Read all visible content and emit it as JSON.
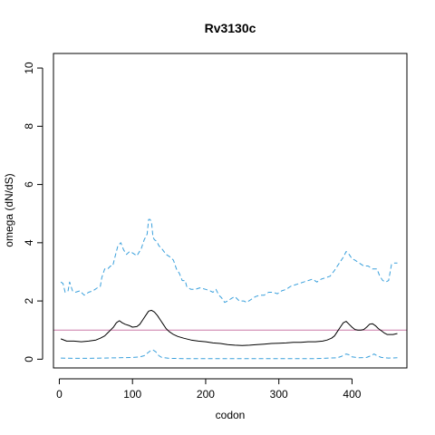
{
  "chart_data": {
    "type": "line",
    "title": "Rv3130c",
    "xlabel": "codon",
    "ylabel": "omega (dN/dS)",
    "xlim": [
      -8,
      475
    ],
    "ylim": [
      -0.3,
      10.5
    ],
    "xticks": [
      0,
      100,
      200,
      300,
      400
    ],
    "yticks": [
      0,
      2,
      4,
      6,
      8,
      10
    ],
    "grid": false,
    "reference_line": {
      "y": 1,
      "color": "#cc79a7"
    },
    "series": [
      {
        "style": "dashed",
        "color": "#3aa0dc",
        "x": [
          2,
          5,
          8,
          12,
          14,
          18,
          22,
          28,
          34,
          40,
          46,
          52,
          56,
          58,
          62,
          66,
          70,
          73,
          76,
          80,
          84,
          88,
          92,
          96,
          100,
          106,
          112,
          116,
          120,
          122,
          124,
          126,
          128,
          130,
          133,
          136,
          140,
          146,
          152,
          156,
          160,
          164,
          168,
          172,
          174,
          176,
          180,
          186,
          192,
          200,
          206,
          210,
          214,
          218,
          222,
          226,
          230,
          236,
          240,
          246,
          252,
          256,
          262,
          268,
          274,
          280,
          286,
          292,
          298,
          304,
          310,
          316,
          322,
          328,
          334,
          340,
          346,
          352,
          358,
          364,
          370,
          376,
          380,
          384,
          388,
          392,
          396,
          400,
          404,
          410,
          416,
          422,
          428,
          434,
          438,
          442,
          446,
          450,
          454,
          458,
          462
        ],
        "y": [
          2.65,
          2.6,
          2.3,
          2.35,
          2.65,
          2.35,
          2.3,
          2.35,
          2.2,
          2.3,
          2.35,
          2.45,
          2.5,
          2.8,
          3.1,
          3.1,
          3.2,
          3.2,
          3.5,
          3.9,
          4.0,
          3.75,
          3.6,
          3.7,
          3.65,
          3.55,
          3.8,
          4.1,
          4.3,
          4.8,
          4.8,
          4.7,
          4.2,
          4.1,
          4.05,
          3.9,
          3.8,
          3.6,
          3.5,
          3.4,
          3.1,
          2.95,
          2.7,
          2.7,
          2.5,
          2.45,
          2.4,
          2.4,
          2.45,
          2.4,
          2.35,
          2.3,
          2.4,
          2.2,
          2.1,
          1.95,
          2.0,
          2.1,
          2.15,
          2.0,
          2.0,
          1.95,
          2.05,
          2.15,
          2.2,
          2.2,
          2.3,
          2.3,
          2.25,
          2.35,
          2.4,
          2.5,
          2.55,
          2.6,
          2.65,
          2.7,
          2.75,
          2.65,
          2.75,
          2.8,
          2.85,
          3.05,
          3.2,
          3.35,
          3.5,
          3.7,
          3.6,
          3.45,
          3.4,
          3.3,
          3.2,
          3.2,
          3.1,
          3.1,
          2.85,
          2.7,
          2.65,
          2.7,
          3.25,
          3.3,
          3.3
        ]
      },
      {
        "style": "solid",
        "color": "#000000",
        "x": [
          2,
          10,
          20,
          30,
          40,
          50,
          56,
          62,
          66,
          70,
          74,
          78,
          82,
          86,
          90,
          96,
          100,
          106,
          110,
          114,
          118,
          122,
          126,
          130,
          134,
          138,
          142,
          146,
          150,
          156,
          162,
          170,
          180,
          190,
          200,
          210,
          220,
          230,
          240,
          250,
          260,
          270,
          280,
          290,
          300,
          310,
          320,
          330,
          340,
          350,
          360,
          366,
          372,
          376,
          380,
          384,
          388,
          392,
          396,
          400,
          404,
          408,
          412,
          416,
          420,
          424,
          428,
          432,
          436,
          440,
          444,
          448,
          452,
          456,
          460,
          462
        ],
        "y": [
          0.7,
          0.62,
          0.62,
          0.6,
          0.62,
          0.66,
          0.72,
          0.8,
          0.9,
          1.0,
          1.1,
          1.25,
          1.32,
          1.25,
          1.2,
          1.15,
          1.1,
          1.12,
          1.2,
          1.35,
          1.5,
          1.65,
          1.68,
          1.62,
          1.5,
          1.35,
          1.2,
          1.05,
          0.95,
          0.85,
          0.78,
          0.72,
          0.66,
          0.62,
          0.6,
          0.56,
          0.54,
          0.5,
          0.48,
          0.47,
          0.48,
          0.5,
          0.52,
          0.54,
          0.55,
          0.56,
          0.58,
          0.58,
          0.6,
          0.6,
          0.62,
          0.66,
          0.72,
          0.8,
          0.95,
          1.1,
          1.25,
          1.3,
          1.2,
          1.1,
          1.02,
          1.0,
          1.0,
          1.02,
          1.1,
          1.2,
          1.22,
          1.15,
          1.05,
          0.98,
          0.9,
          0.85,
          0.85,
          0.85,
          0.87,
          0.88
        ]
      },
      {
        "style": "dashed",
        "color": "#3aa0dc",
        "x": [
          2,
          20,
          40,
          60,
          80,
          100,
          110,
          116,
          120,
          124,
          128,
          132,
          136,
          140,
          150,
          170,
          200,
          250,
          300,
          350,
          380,
          386,
          392,
          396,
          400,
          410,
          420,
          426,
          430,
          434,
          440,
          450,
          462
        ],
        "y": [
          0.04,
          0.03,
          0.03,
          0.04,
          0.05,
          0.06,
          0.08,
          0.12,
          0.2,
          0.28,
          0.32,
          0.25,
          0.12,
          0.06,
          0.03,
          0.02,
          0.02,
          0.02,
          0.02,
          0.02,
          0.05,
          0.1,
          0.18,
          0.15,
          0.08,
          0.05,
          0.06,
          0.12,
          0.18,
          0.12,
          0.06,
          0.04,
          0.05
        ]
      }
    ]
  }
}
